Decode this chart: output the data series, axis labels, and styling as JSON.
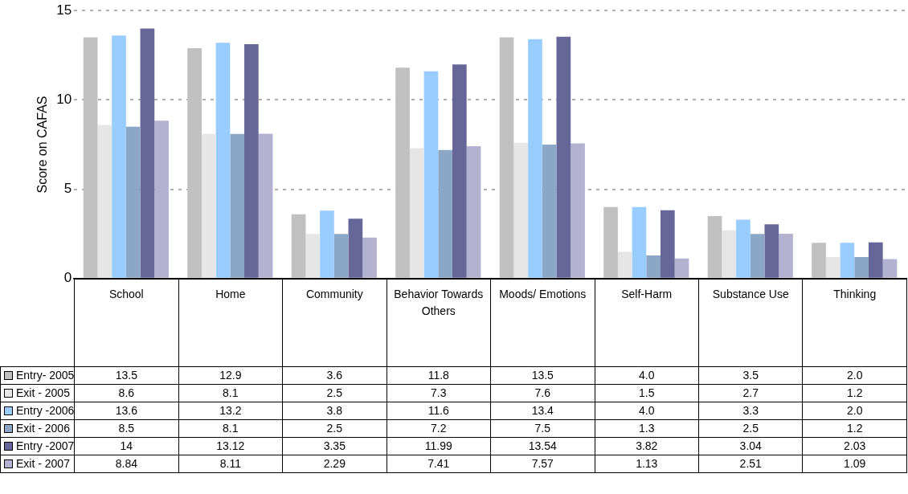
{
  "chart_data": {
    "type": "bar",
    "ylabel": "Score on CAFAS",
    "categories": [
      "School",
      "Home",
      "Community",
      "Behavior Towards Others",
      "Moods/ Emotions",
      "Self-Harm",
      "Substance Use",
      "Thinking"
    ],
    "series": [
      {
        "name": "Entry- 2005",
        "color": "#c0c0c0",
        "values": [
          13.5,
          12.9,
          3.6,
          11.8,
          13.5,
          4.0,
          3.5,
          2.0
        ],
        "value_labels": [
          "13.5",
          "12.9",
          "3.6",
          "11.8",
          "13.5",
          "4.0",
          "3.5",
          "2.0"
        ]
      },
      {
        "name": "Exit - 2005",
        "color": "#e6e6e6",
        "values": [
          8.6,
          8.1,
          2.5,
          7.3,
          7.6,
          1.5,
          2.7,
          1.2
        ],
        "value_labels": [
          "8.6",
          "8.1",
          "2.5",
          "7.3",
          "7.6",
          "1.5",
          "2.7",
          "1.2"
        ]
      },
      {
        "name": "Entry -2006",
        "color": "#99ccff",
        "values": [
          13.6,
          13.2,
          3.8,
          11.6,
          13.4,
          4.0,
          3.3,
          2.0
        ],
        "value_labels": [
          "13.6",
          "13.2",
          "3.8",
          "11.6",
          "13.4",
          "4.0",
          "3.3",
          "2.0"
        ]
      },
      {
        "name": "Exit - 2006",
        "color": "#8ca6c6",
        "values": [
          8.5,
          8.1,
          2.5,
          7.2,
          7.5,
          1.3,
          2.5,
          1.2
        ],
        "value_labels": [
          "8.5",
          "8.1",
          "2.5",
          "7.2",
          "7.5",
          "1.3",
          "2.5",
          "1.2"
        ]
      },
      {
        "name": "Entry -2007",
        "color": "#666699",
        "values": [
          14,
          13.12,
          3.35,
          11.99,
          13.54,
          3.82,
          3.04,
          2.03
        ],
        "value_labels": [
          "14",
          "13.12",
          "3.35",
          "11.99",
          "13.54",
          "3.82",
          "3.04",
          "2.03"
        ]
      },
      {
        "name": "Exit - 2007",
        "color": "#b3b3d1",
        "values": [
          8.84,
          8.11,
          2.29,
          7.41,
          7.57,
          1.13,
          2.51,
          1.09
        ],
        "value_labels": [
          "8.84",
          "8.11",
          "2.29",
          "7.41",
          "7.57",
          "1.13",
          "2.51",
          "1.09"
        ]
      }
    ],
    "ylim": [
      0,
      15
    ],
    "yticks": [
      0,
      5,
      10,
      15
    ],
    "grid": "y",
    "legend": "bottom left"
  }
}
